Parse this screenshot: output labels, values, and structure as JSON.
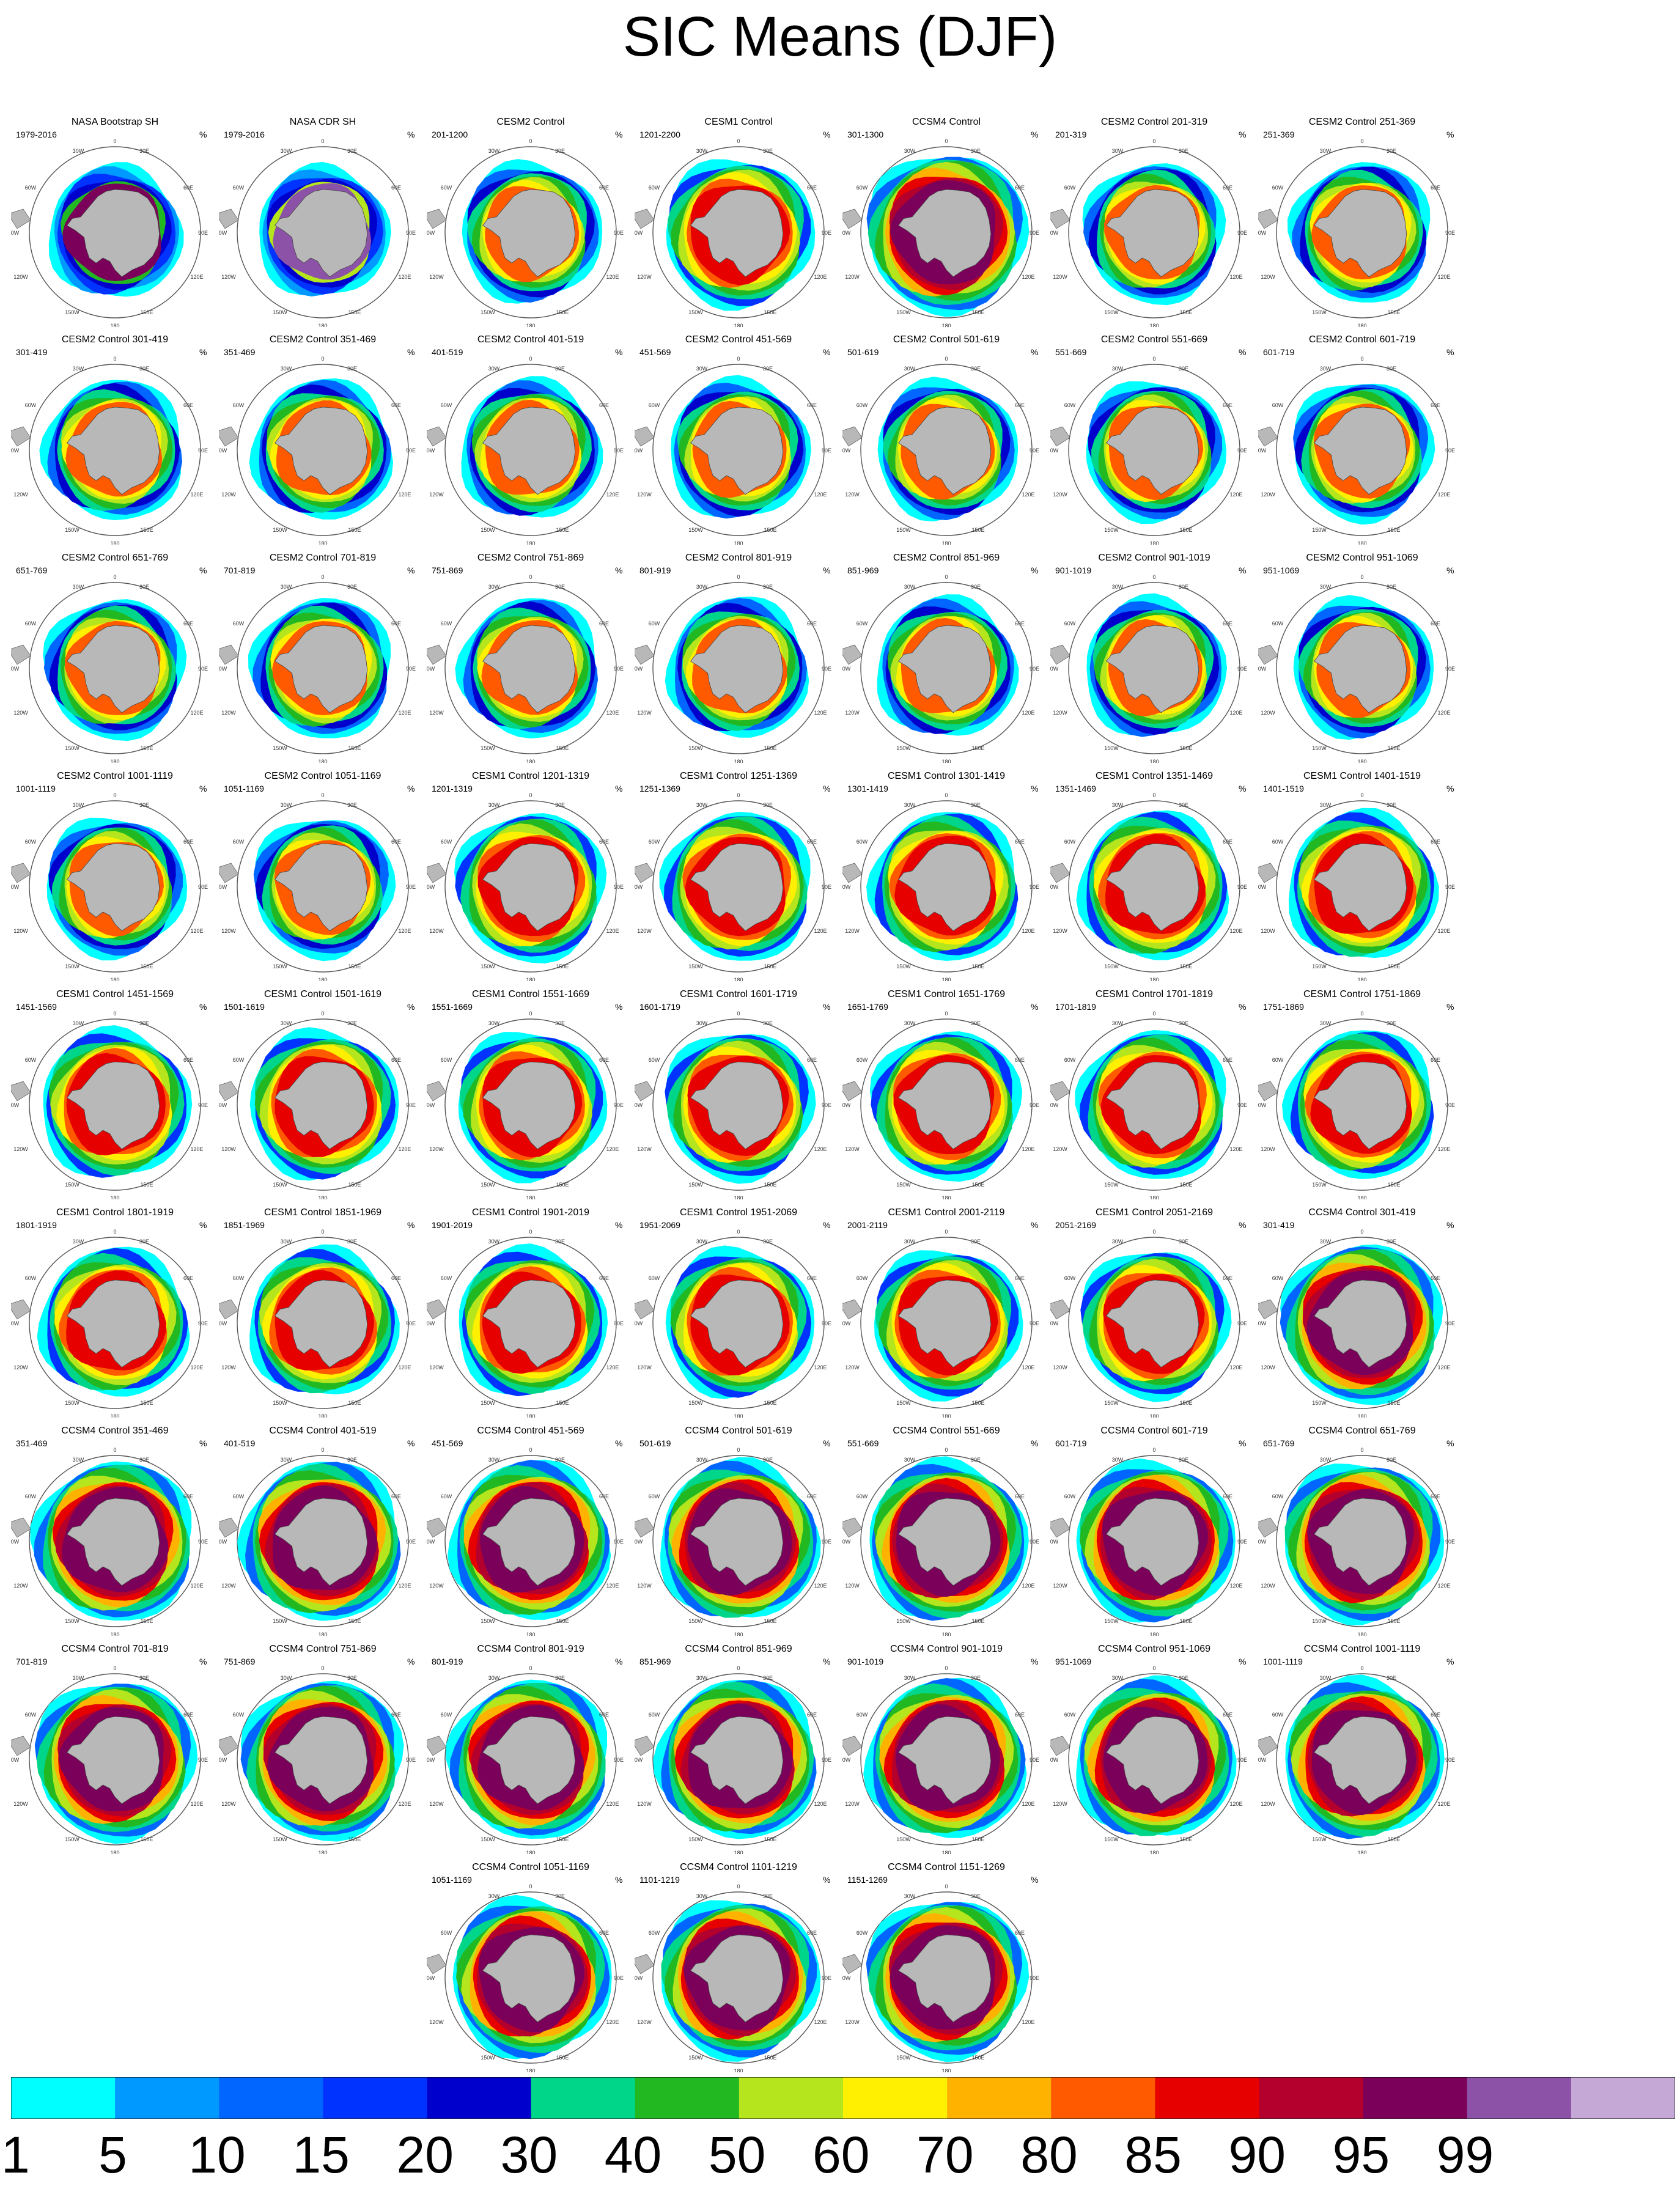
{
  "page_title": "SIC Means (DJF)",
  "unit_symbol": "%",
  "map_labels": {
    "top": "0",
    "bottom": "180",
    "left": "90W",
    "right": "90E",
    "ul": "30W",
    "ur": "30E",
    "ml_l": "60W",
    "ml_r": "60E",
    "ll": "120W",
    "lr": "120E",
    "bl": "150W",
    "br": "150E"
  },
  "colorbar": {
    "levels": [
      "1",
      "5",
      "10",
      "15",
      "20",
      "30",
      "40",
      "50",
      "60",
      "70",
      "80",
      "85",
      "90",
      "95",
      "99"
    ],
    "colors": [
      "#00ffff",
      "#0099ff",
      "#0066ff",
      "#0033ff",
      "#0000cc",
      "#00d68a",
      "#22b822",
      "#b5e61d",
      "#ffef00",
      "#ffb300",
      "#ff5a00",
      "#e60000",
      "#b3002d",
      "#7a005a",
      "#8c52a8",
      "#c6a8d6"
    ]
  },
  "land_color": "#b8b8b8",
  "chart_data": {
    "type": "heatmap",
    "title": "SIC Means (DJF)",
    "projection": "south polar stereographic",
    "season": "DJF",
    "units": "%",
    "panels": [
      {
        "title": "NASA Bootstrap SH",
        "range": "1979-2016",
        "model": "obs1"
      },
      {
        "title": "NASA CDR SH",
        "range": "1979-2016",
        "model": "obs2"
      },
      {
        "title": "CESM2 Control",
        "range": "201-1200",
        "model": "cesm2"
      },
      {
        "title": "CESM1 Control",
        "range": "1201-2200",
        "model": "cesm1"
      },
      {
        "title": "CCSM4 Control",
        "range": "301-1300",
        "model": "ccsm4"
      },
      {
        "title": "CESM2 Control 201-319",
        "range": "201-319",
        "model": "cesm2"
      },
      {
        "title": "CESM2 Control 251-369",
        "range": "251-369",
        "model": "cesm2"
      },
      {
        "title": "CESM2 Control 301-419",
        "range": "301-419",
        "model": "cesm2"
      },
      {
        "title": "CESM2 Control 351-469",
        "range": "351-469",
        "model": "cesm2"
      },
      {
        "title": "CESM2 Control 401-519",
        "range": "401-519",
        "model": "cesm2"
      },
      {
        "title": "CESM2 Control 451-569",
        "range": "451-569",
        "model": "cesm2"
      },
      {
        "title": "CESM2 Control 501-619",
        "range": "501-619",
        "model": "cesm2"
      },
      {
        "title": "CESM2 Control 551-669",
        "range": "551-669",
        "model": "cesm2"
      },
      {
        "title": "CESM2 Control 601-719",
        "range": "601-719",
        "model": "cesm2"
      },
      {
        "title": "CESM2 Control 651-769",
        "range": "651-769",
        "model": "cesm2"
      },
      {
        "title": "CESM2 Control 701-819",
        "range": "701-819",
        "model": "cesm2"
      },
      {
        "title": "CESM2 Control 751-869",
        "range": "751-869",
        "model": "cesm2"
      },
      {
        "title": "CESM2 Control 801-919",
        "range": "801-919",
        "model": "cesm2"
      },
      {
        "title": "CESM2 Control 851-969",
        "range": "851-969",
        "model": "cesm2"
      },
      {
        "title": "CESM2 Control 901-1019",
        "range": "901-1019",
        "model": "cesm2"
      },
      {
        "title": "CESM2 Control 951-1069",
        "range": "951-1069",
        "model": "cesm2"
      },
      {
        "title": "CESM2 Control 1001-1119",
        "range": "1001-1119",
        "model": "cesm2"
      },
      {
        "title": "CESM2 Control 1051-1169",
        "range": "1051-1169",
        "model": "cesm2"
      },
      {
        "title": "CESM1 Control 1201-1319",
        "range": "1201-1319",
        "model": "cesm1"
      },
      {
        "title": "CESM1 Control 1251-1369",
        "range": "1251-1369",
        "model": "cesm1"
      },
      {
        "title": "CESM1 Control 1301-1419",
        "range": "1301-1419",
        "model": "cesm1"
      },
      {
        "title": "CESM1 Control 1351-1469",
        "range": "1351-1469",
        "model": "cesm1"
      },
      {
        "title": "CESM1 Control 1401-1519",
        "range": "1401-1519",
        "model": "cesm1"
      },
      {
        "title": "CESM1 Control 1451-1569",
        "range": "1451-1569",
        "model": "cesm1"
      },
      {
        "title": "CESM1 Control 1501-1619",
        "range": "1501-1619",
        "model": "cesm1"
      },
      {
        "title": "CESM1 Control 1551-1669",
        "range": "1551-1669",
        "model": "cesm1"
      },
      {
        "title": "CESM1 Control 1601-1719",
        "range": "1601-1719",
        "model": "cesm1"
      },
      {
        "title": "CESM1 Control 1651-1769",
        "range": "1651-1769",
        "model": "cesm1"
      },
      {
        "title": "CESM1 Control 1701-1819",
        "range": "1701-1819",
        "model": "cesm1"
      },
      {
        "title": "CESM1 Control 1751-1869",
        "range": "1751-1869",
        "model": "cesm1"
      },
      {
        "title": "CESM1 Control 1801-1919",
        "range": "1801-1919",
        "model": "cesm1"
      },
      {
        "title": "CESM1 Control 1851-1969",
        "range": "1851-1969",
        "model": "cesm1"
      },
      {
        "title": "CESM1 Control 1901-2019",
        "range": "1901-2019",
        "model": "cesm1"
      },
      {
        "title": "CESM1 Control 1951-2069",
        "range": "1951-2069",
        "model": "cesm1"
      },
      {
        "title": "CESM1 Control 2001-2119",
        "range": "2001-2119",
        "model": "cesm1"
      },
      {
        "title": "CESM1 Control 2051-2169",
        "range": "2051-2169",
        "model": "cesm1"
      },
      {
        "title": "CCSM4 Control 301-419",
        "range": "301-419",
        "model": "ccsm4"
      },
      {
        "title": "CCSM4 Control 351-469",
        "range": "351-469",
        "model": "ccsm4"
      },
      {
        "title": "CCSM4 Control 401-519",
        "range": "401-519",
        "model": "ccsm4"
      },
      {
        "title": "CCSM4 Control 451-569",
        "range": "451-569",
        "model": "ccsm4"
      },
      {
        "title": "CCSM4 Control 501-619",
        "range": "501-619",
        "model": "ccsm4"
      },
      {
        "title": "CCSM4 Control 551-669",
        "range": "551-669",
        "model": "ccsm4"
      },
      {
        "title": "CCSM4 Control 601-719",
        "range": "601-719",
        "model": "ccsm4"
      },
      {
        "title": "CCSM4 Control 651-769",
        "range": "651-769",
        "model": "ccsm4"
      },
      {
        "title": "CCSM4 Control 701-819",
        "range": "701-819",
        "model": "ccsm4"
      },
      {
        "title": "CCSM4 Control 751-869",
        "range": "751-869",
        "model": "ccsm4"
      },
      {
        "title": "CCSM4 Control 801-919",
        "range": "801-919",
        "model": "ccsm4"
      },
      {
        "title": "CCSM4 Control 851-969",
        "range": "851-969",
        "model": "ccsm4"
      },
      {
        "title": "CCSM4 Control 901-1019",
        "range": "901-1019",
        "model": "ccsm4"
      },
      {
        "title": "CCSM4 Control 951-1069",
        "range": "951-1069",
        "model": "ccsm4"
      },
      {
        "title": "CCSM4 Control 1001-1119",
        "range": "1001-1119",
        "model": "ccsm4"
      },
      {
        "title": "CCSM4 Control 1051-1169",
        "range": "1051-1169",
        "model": "ccsm4"
      },
      {
        "title": "CCSM4 Control 1101-1219",
        "range": "1101-1219",
        "model": "ccsm4"
      },
      {
        "title": "CCSM4 Control 1151-1269",
        "range": "1151-1269",
        "model": "ccsm4"
      }
    ]
  }
}
